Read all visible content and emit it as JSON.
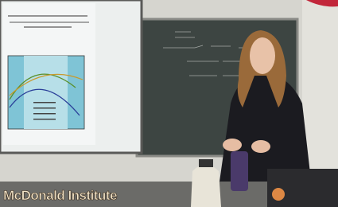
{
  "caption": {
    "text": "McDonald Institute"
  }
}
